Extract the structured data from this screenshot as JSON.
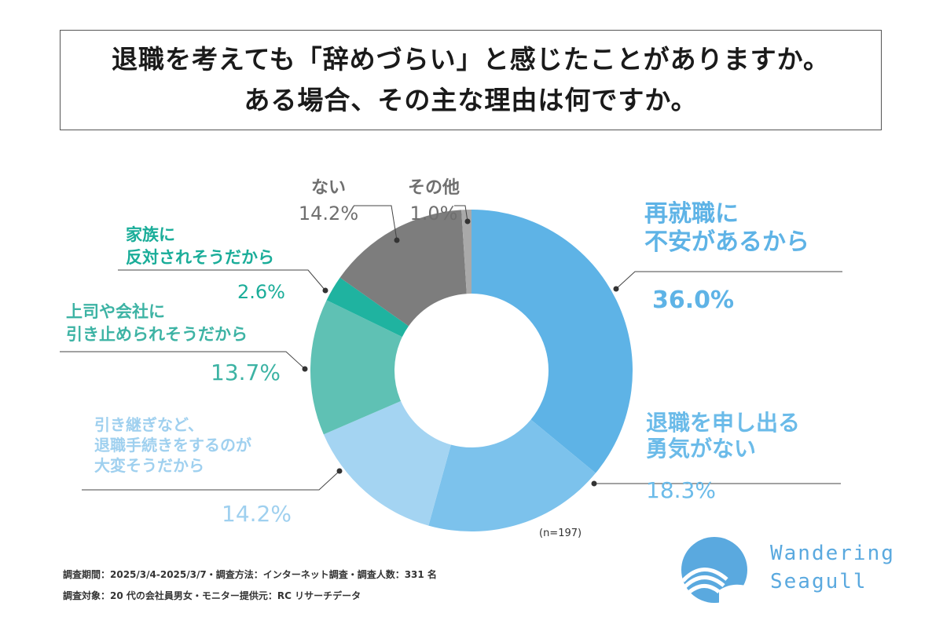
{
  "title": {
    "line1": "退職を考えても「辞めづらい」と感じたことがありますか。",
    "line2": "ある場合、その主な理由は何ですか。"
  },
  "chart_data": {
    "type": "pie",
    "donut": true,
    "sample_note": "(n=197)",
    "slices": [
      {
        "label_lines": [
          "再就職に",
          "不安があるから"
        ],
        "value": 36.0,
        "value_text": "36.0%",
        "color": "#5eb3e6",
        "label_color": "#5eb3e6"
      },
      {
        "label_lines": [
          "退職を申し出る",
          "勇気がない"
        ],
        "value": 18.3,
        "value_text": "18.3%",
        "color": "#7cc2ec",
        "label_color": "#6bbbe9"
      },
      {
        "label_lines": [
          "引き継ぎなど、",
          "退職手続きをするのが",
          "大変そうだから"
        ],
        "value": 14.2,
        "value_text": "14.2%",
        "color": "#a4d4f2",
        "label_color": "#9fd0ef"
      },
      {
        "label_lines": [
          "上司や会社に",
          "引き止められそうだから"
        ],
        "value": 13.7,
        "value_text": "13.7%",
        "color": "#5fc1b4",
        "label_color": "#3db3a4"
      },
      {
        "label_lines": [
          "家族に",
          "反対されそうだから"
        ],
        "value": 2.6,
        "value_text": "2.6%",
        "color": "#1fb3a0",
        "label_color": "#1aad99"
      },
      {
        "label_lines": [
          "ない"
        ],
        "value": 14.2,
        "value_text": "14.2%",
        "color": "#7d7d7d",
        "label_color": "#6f6f6f"
      },
      {
        "label_lines": [
          "その他"
        ],
        "value": 1.0,
        "value_text": "1.0%",
        "color": "#a9a9a9",
        "label_color": "#6f6f6f"
      }
    ]
  },
  "footer": {
    "line1": "調査期間：2025/3/4-2025/3/7・調査方法：インターネット調査・調査人数：331 名",
    "line2": "調査対象：20 代の会社員男女・モニター提供元：RC リサーチデータ"
  },
  "logo": {
    "line1": "Wandering",
    "line2": "Seagull",
    "color": "#5aa9df"
  }
}
